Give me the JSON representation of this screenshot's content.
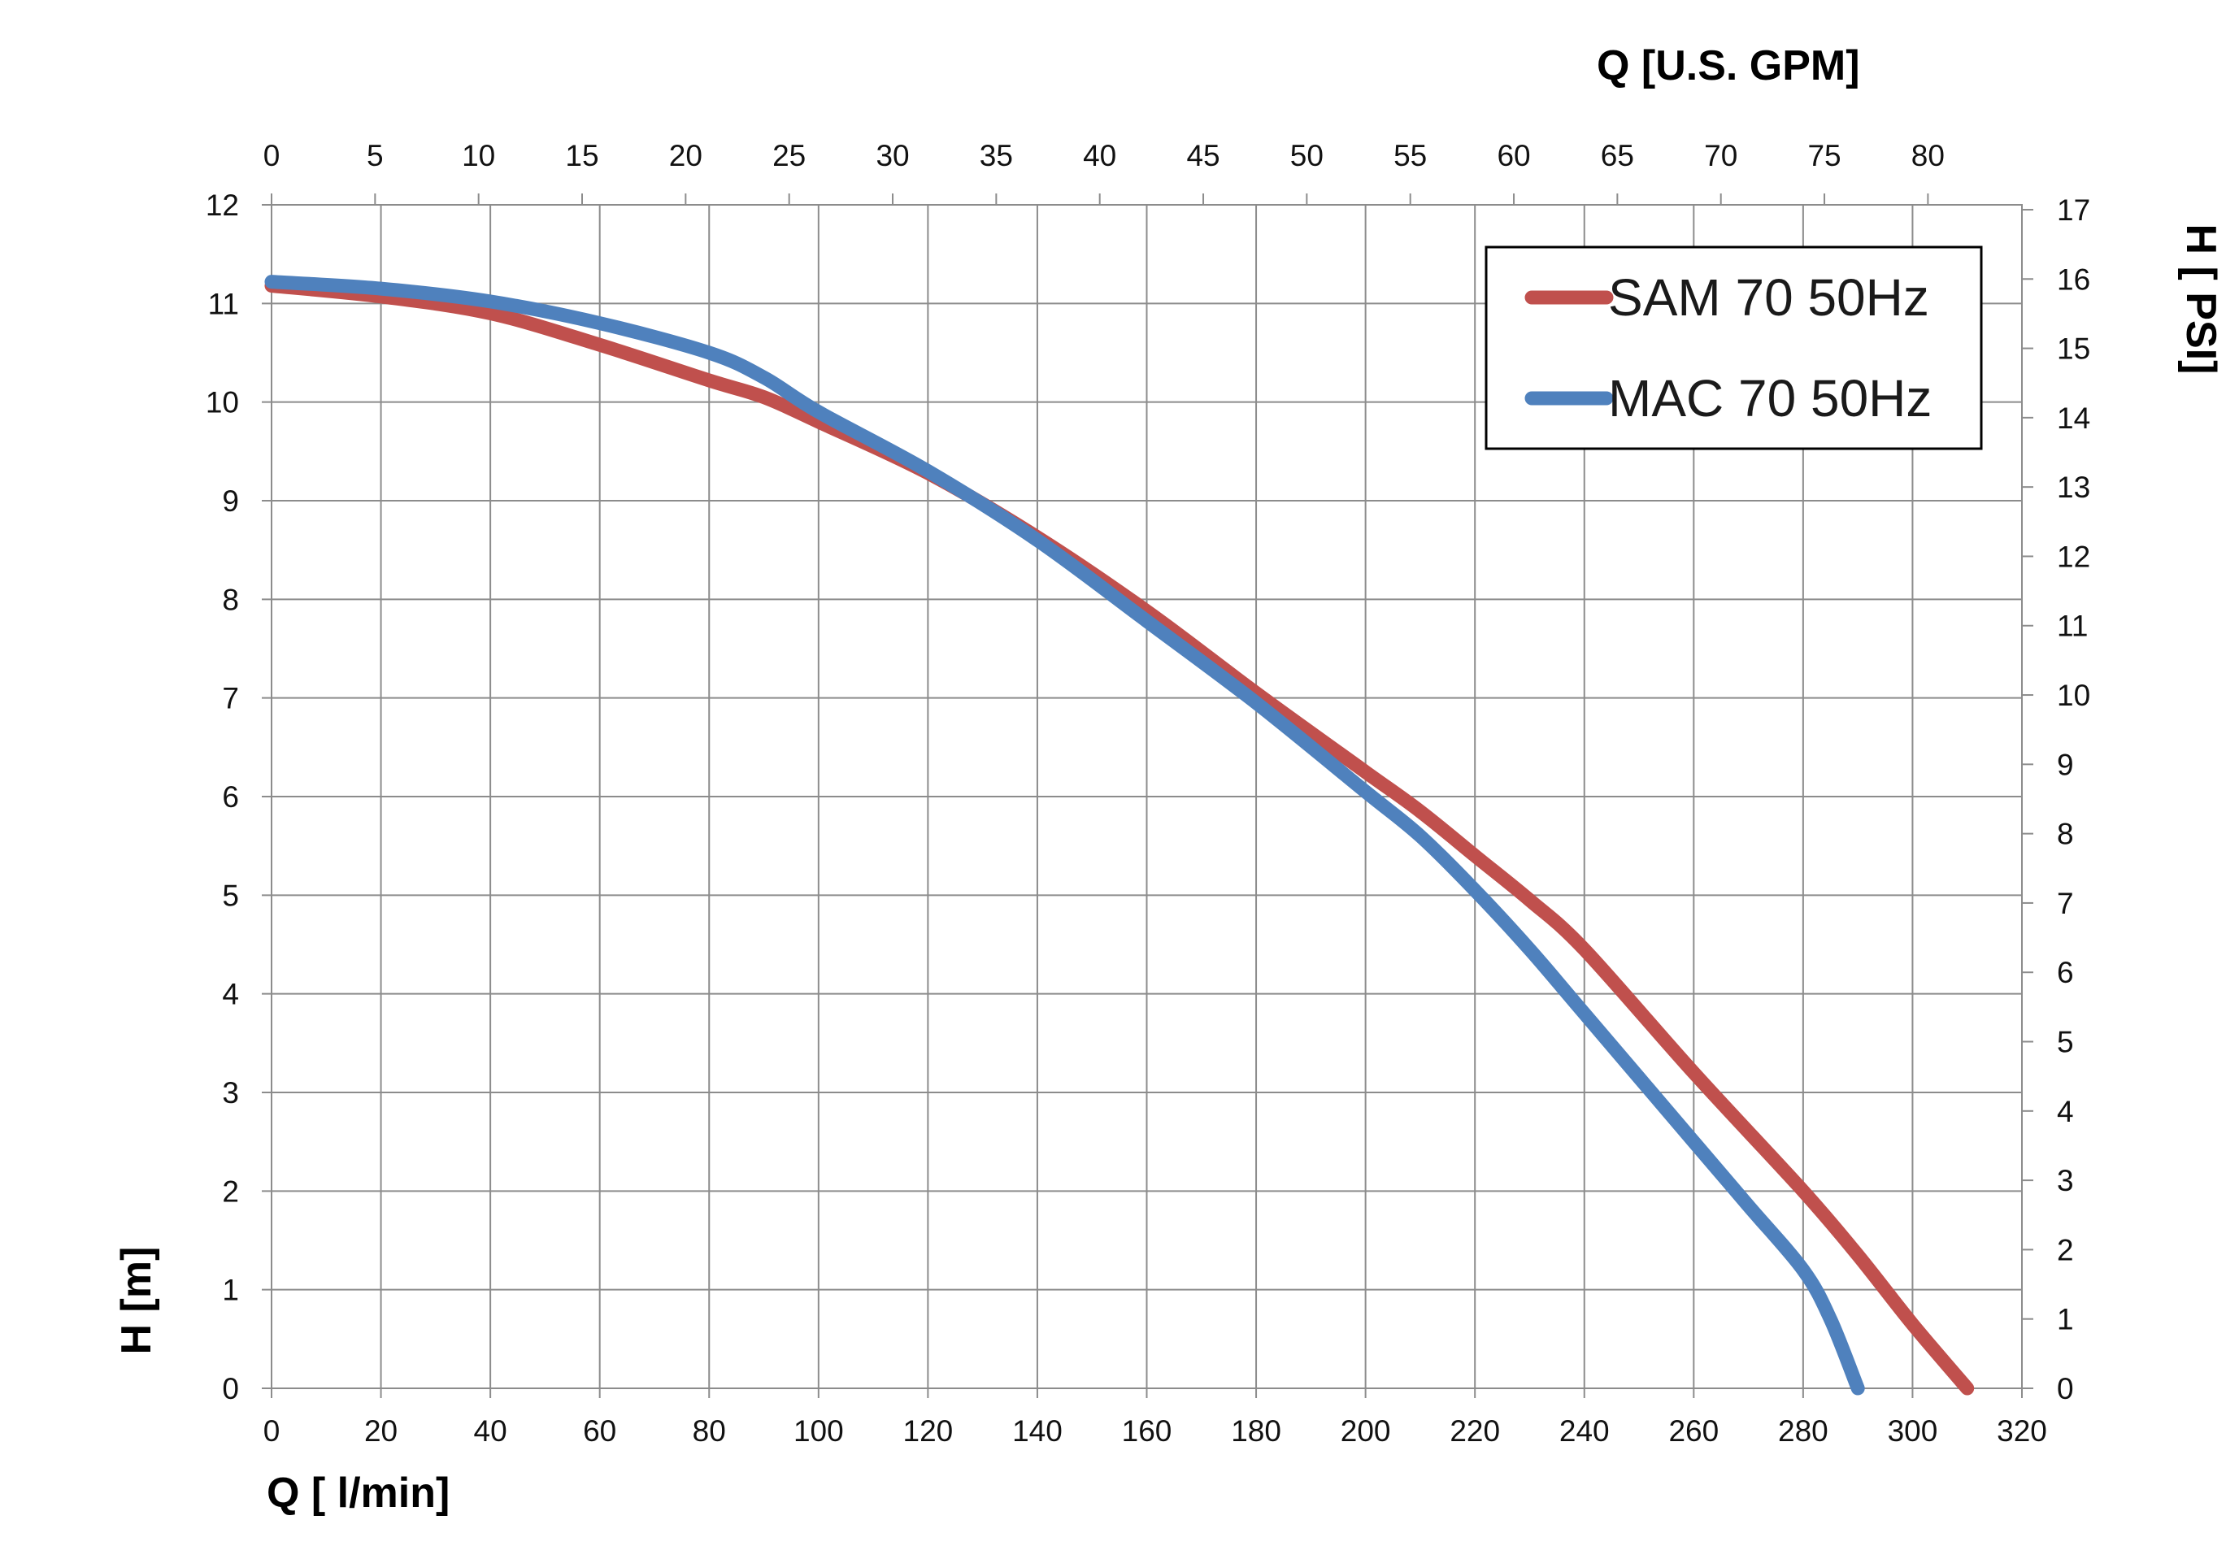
{
  "chart_data": {
    "type": "line",
    "title": "",
    "xlabel": "Q [ l/min]",
    "x2label": "Q  [U.S. GPM]",
    "ylabel": "H [m]",
    "y2label": "H [ PSI]",
    "xlim": [
      0,
      320
    ],
    "ylim": [
      0,
      12
    ],
    "x2lim": [
      0,
      84.54
    ],
    "y2lim": [
      0,
      17.07
    ],
    "grid": true,
    "legend_position": "top-right",
    "x_ticks": [
      "0",
      "20",
      "40",
      "60",
      "80",
      "100",
      "120",
      "140",
      "160",
      "180",
      "200",
      "220",
      "240",
      "260",
      "280",
      "300",
      "320"
    ],
    "y_ticks": [
      "0",
      "1",
      "2",
      "3",
      "4",
      "5",
      "6",
      "7",
      "8",
      "9",
      "10",
      "11",
      "12"
    ],
    "x2_ticks": [
      "0",
      "5",
      "10",
      "15",
      "20",
      "25",
      "30",
      "35",
      "40",
      "45",
      "50",
      "55",
      "60",
      "65",
      "70",
      "75",
      "80"
    ],
    "y2_ticks": [
      "0",
      "1",
      "2",
      "3",
      "4",
      "5",
      "6",
      "7",
      "8",
      "9",
      "10",
      "11",
      "12",
      "13",
      "14",
      "15",
      "16",
      "17"
    ],
    "series": [
      {
        "name": "SAM 70 50Hz",
        "color": "#c0504d",
        "points": [
          [
            0,
            11.18
          ],
          [
            20,
            11.07
          ],
          [
            40,
            10.9
          ],
          [
            60,
            10.58
          ],
          [
            80,
            10.22
          ],
          [
            90,
            10.05
          ],
          [
            100,
            9.8
          ],
          [
            120,
            9.28
          ],
          [
            140,
            8.63
          ],
          [
            160,
            7.88
          ],
          [
            180,
            7.05
          ],
          [
            200,
            6.25
          ],
          [
            210,
            5.85
          ],
          [
            220,
            5.4
          ],
          [
            230,
            4.95
          ],
          [
            240,
            4.45
          ],
          [
            260,
            3.2
          ],
          [
            280,
            2.0
          ],
          [
            290,
            1.35
          ],
          [
            300,
            0.65
          ],
          [
            310,
            0.0
          ]
        ]
      },
      {
        "name": "MAC 70 50Hz",
        "color": "#4f81bd",
        "points": [
          [
            0,
            11.22
          ],
          [
            20,
            11.15
          ],
          [
            40,
            11.02
          ],
          [
            60,
            10.8
          ],
          [
            80,
            10.5
          ],
          [
            90,
            10.25
          ],
          [
            100,
            9.9
          ],
          [
            120,
            9.3
          ],
          [
            140,
            8.6
          ],
          [
            160,
            7.78
          ],
          [
            180,
            6.95
          ],
          [
            200,
            6.05
          ],
          [
            210,
            5.6
          ],
          [
            220,
            5.05
          ],
          [
            230,
            4.45
          ],
          [
            240,
            3.8
          ],
          [
            260,
            2.5
          ],
          [
            270,
            1.85
          ],
          [
            280,
            1.2
          ],
          [
            285,
            0.7
          ],
          [
            290,
            0.0
          ]
        ]
      }
    ]
  }
}
